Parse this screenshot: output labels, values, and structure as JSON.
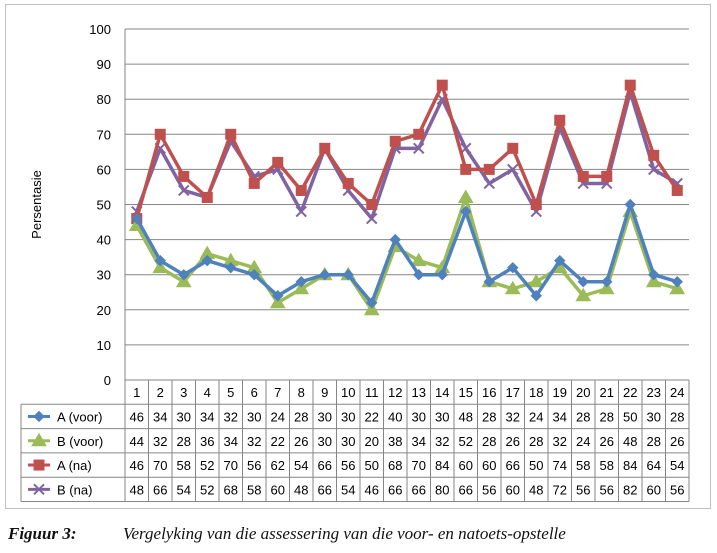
{
  "chart_data": {
    "type": "line",
    "title": "",
    "xlabel": "",
    "ylabel": "Persentasie",
    "ylim": [
      0,
      100
    ],
    "yticks": [
      0,
      10,
      20,
      30,
      40,
      50,
      60,
      70,
      80,
      90,
      100
    ],
    "categories": [
      "1",
      "2",
      "3",
      "4",
      "5",
      "6",
      "7",
      "8",
      "9",
      "10",
      "11",
      "12",
      "13",
      "14",
      "15",
      "16",
      "17",
      "18",
      "19",
      "20",
      "21",
      "22",
      "23",
      "24"
    ],
    "grid": "horizontal",
    "legend": "data-table",
    "series": [
      {
        "name": "A (voor)",
        "color": "#4f81bd",
        "marker": "diamond",
        "values": [
          46,
          34,
          30,
          34,
          32,
          30,
          24,
          28,
          30,
          30,
          22,
          40,
          30,
          30,
          48,
          28,
          32,
          24,
          34,
          28,
          28,
          50,
          30,
          28
        ]
      },
      {
        "name": "B (voor)",
        "color": "#9bbb59",
        "marker": "triangle",
        "values": [
          44,
          32,
          28,
          36,
          34,
          32,
          22,
          26,
          30,
          30,
          20,
          38,
          34,
          32,
          52,
          28,
          26,
          28,
          32,
          24,
          26,
          48,
          28,
          26
        ]
      },
      {
        "name": "A (na)",
        "color": "#c0504d",
        "marker": "square",
        "values": [
          46,
          70,
          58,
          52,
          70,
          56,
          62,
          54,
          66,
          56,
          50,
          68,
          70,
          84,
          60,
          60,
          66,
          50,
          74,
          58,
          58,
          84,
          64,
          54
        ]
      },
      {
        "name": "B (na)",
        "color": "#8064a2",
        "marker": "x",
        "values": [
          48,
          66,
          54,
          52,
          68,
          58,
          60,
          48,
          66,
          54,
          46,
          66,
          66,
          80,
          66,
          56,
          60,
          48,
          72,
          56,
          56,
          82,
          60,
          56
        ]
      }
    ]
  },
  "caption": {
    "label": "Figuur 3:",
    "text": "Vergelyking van die assessering van die voor- en natoets-opstelle"
  }
}
